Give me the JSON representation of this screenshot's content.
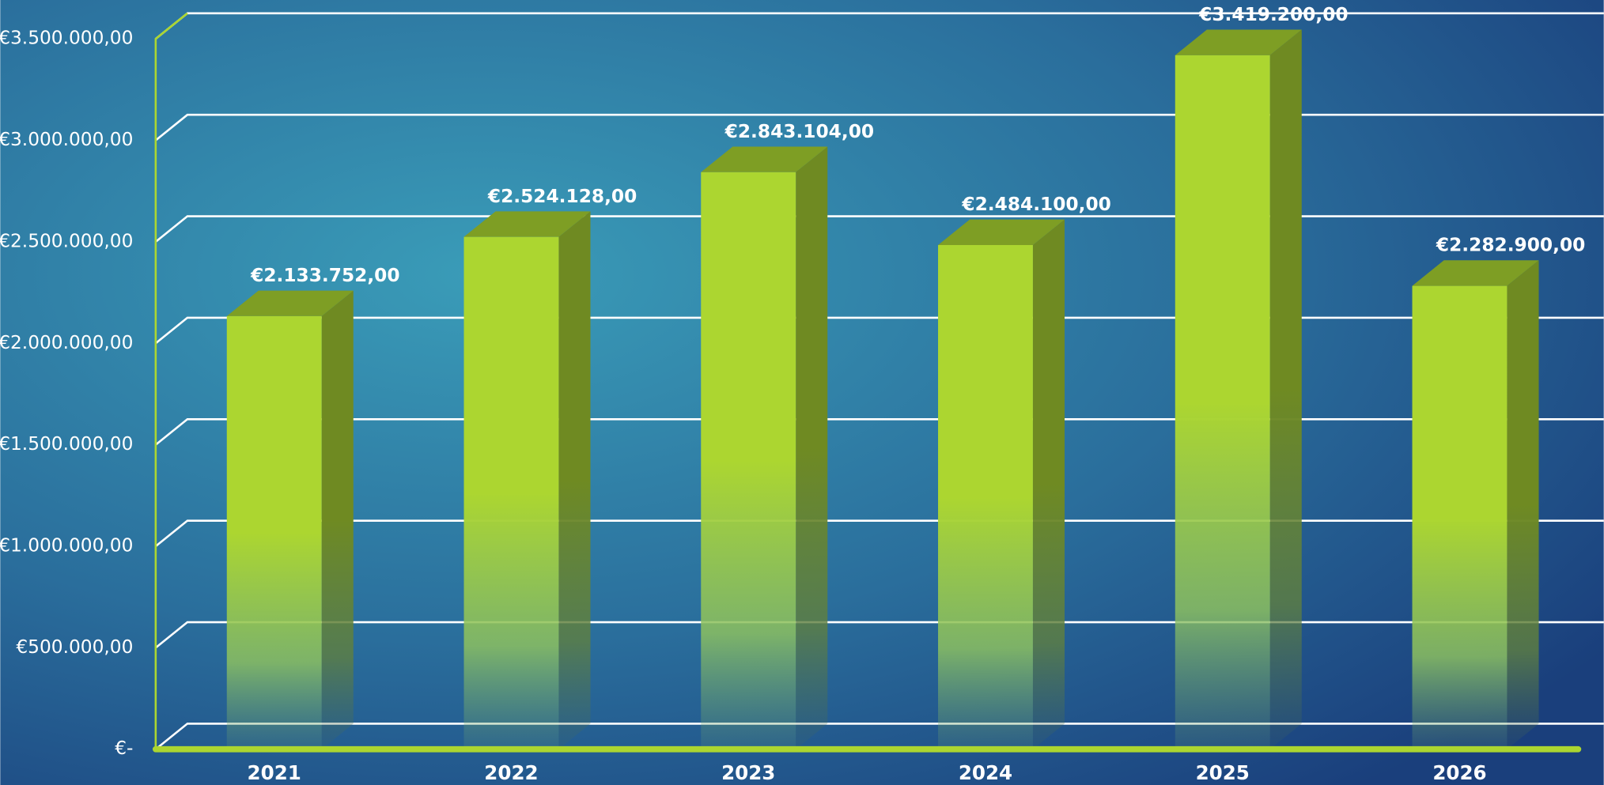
{
  "chart_data": {
    "type": "bar3d",
    "categories": [
      "2021",
      "2022",
      "2023",
      "2024",
      "2025",
      "2026"
    ],
    "values": [
      2133752,
      2524128,
      2843104,
      2484100,
      3419200,
      2282900
    ],
    "value_labels": [
      "€2.133.752,00",
      "€2.524.128,00",
      "€2.843.104,00",
      "€2.484.100,00",
      "€3.419.200,00",
      "€2.282.900,00"
    ],
    "color": "#acd630",
    "ylim": [
      0,
      3500000
    ],
    "yticks": [
      {
        "value": 0,
        "label": "€-"
      },
      {
        "value": 500000,
        "label": "€500.000,00"
      },
      {
        "value": 1000000,
        "label": "€1.000.000,00"
      },
      {
        "value": 1500000,
        "label": "€1.500.000,00"
      },
      {
        "value": 2000000,
        "label": "€2.000.000,00"
      },
      {
        "value": 2500000,
        "label": "€2.500.000,00"
      },
      {
        "value": 3000000,
        "label": "€3.000.000,00"
      },
      {
        "value": 3500000,
        "label": "€3.500.000,00"
      }
    ],
    "grid": true
  }
}
